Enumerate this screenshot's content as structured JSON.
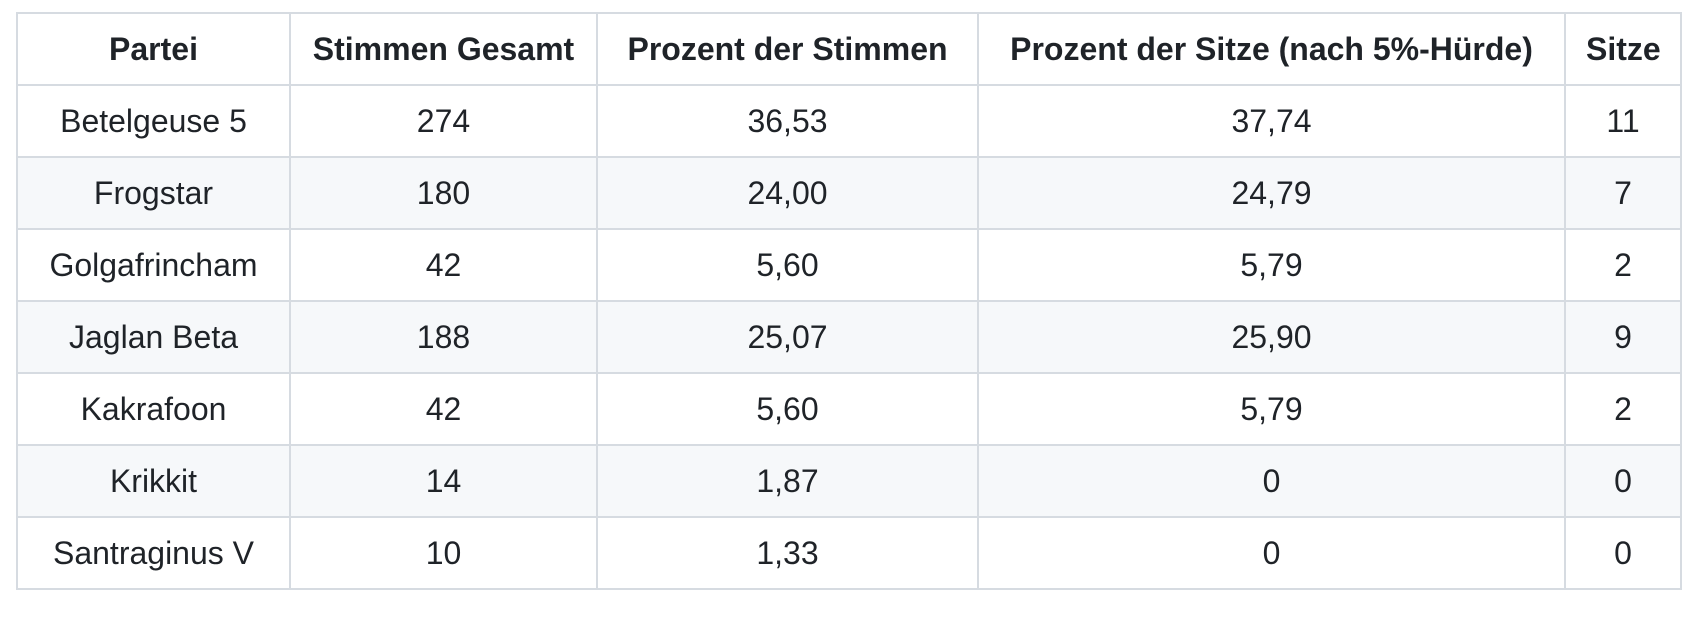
{
  "table": {
    "columns": [
      "Partei",
      "Stimmen Gesamt",
      "Prozent der Stimmen",
      "Prozent der Sitze (nach 5%-Hürde)",
      "Sitze"
    ],
    "column_keys": [
      "partei",
      "stimmen-gesamt",
      "prozent-der-stimmen",
      "prozent-der-sitze",
      "sitze"
    ],
    "rows": [
      [
        "Betelgeuse 5",
        "274",
        "36,53",
        "37,74",
        "11"
      ],
      [
        "Frogstar",
        "180",
        "24,00",
        "24,79",
        "7"
      ],
      [
        "Golgafrincham",
        "42",
        "5,60",
        "5,79",
        "2"
      ],
      [
        "Jaglan Beta",
        "188",
        "25,07",
        "25,90",
        "9"
      ],
      [
        "Kakrafoon",
        "42",
        "5,60",
        "5,79",
        "2"
      ],
      [
        "Krikkit",
        "14",
        "1,87",
        "0",
        "0"
      ],
      [
        "Santraginus V",
        "10",
        "1,33",
        "0",
        "0"
      ]
    ]
  },
  "colors": {
    "text": "#1f2328",
    "border": "#d6dbe1",
    "stripe": "#f6f8fa",
    "background": "#ffffff"
  }
}
